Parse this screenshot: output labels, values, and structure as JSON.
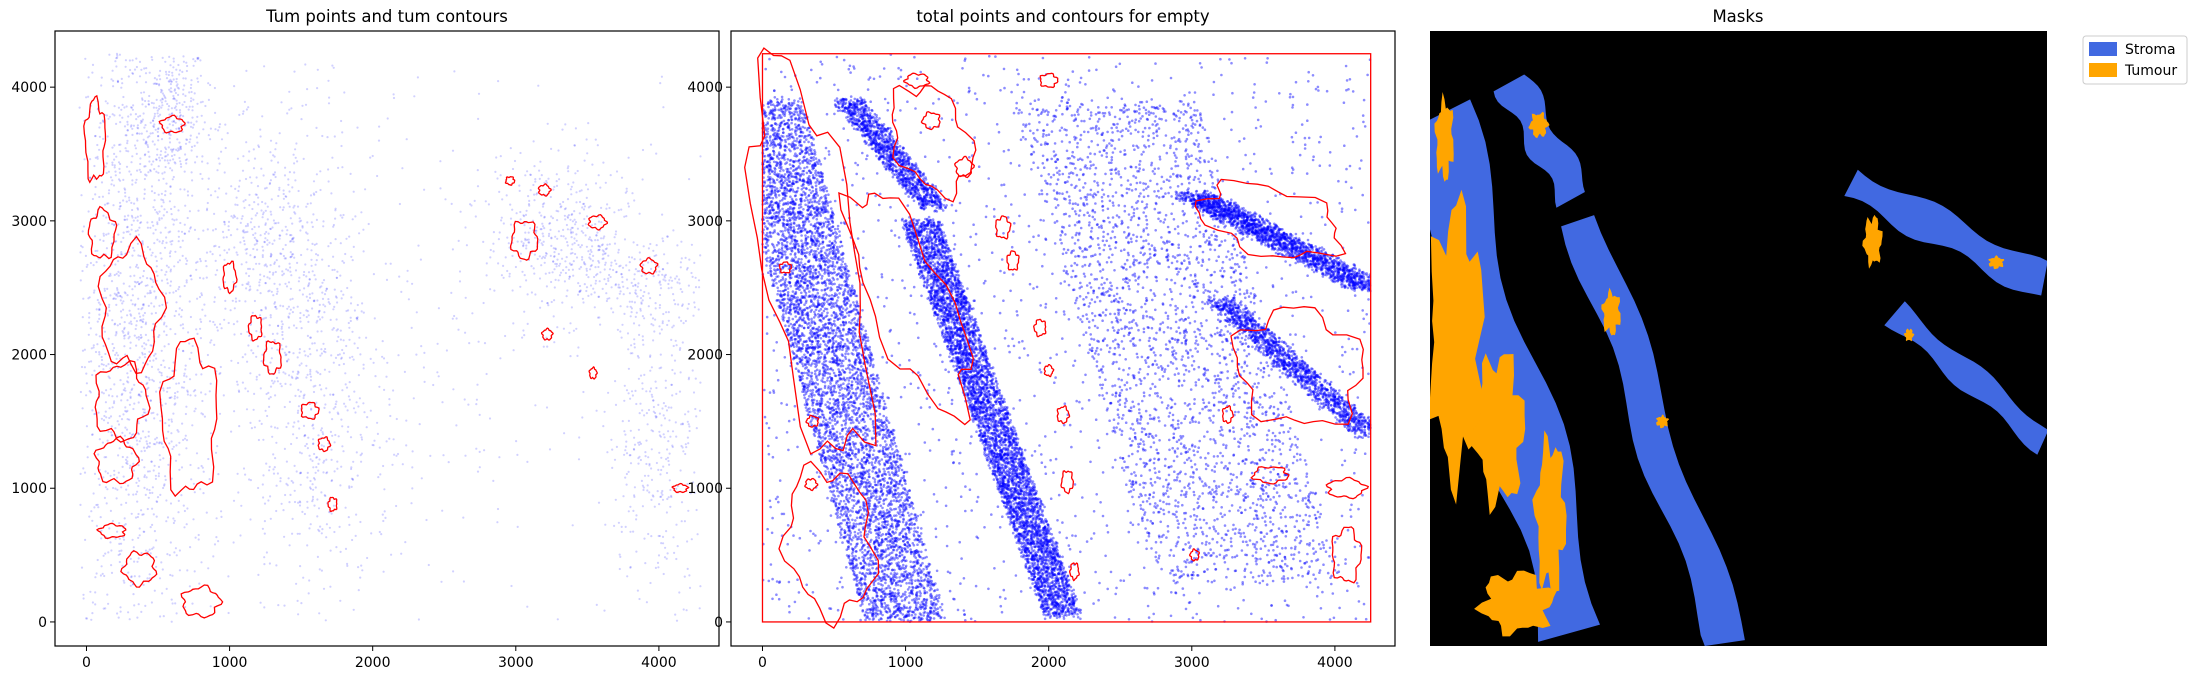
{
  "chart_data": [
    {
      "type": "scatter",
      "title": "Tum points and tum contours",
      "xlim": [
        -220,
        4420
      ],
      "ylim": [
        -180,
        4420
      ],
      "x_ticks": [
        0,
        1000,
        2000,
        3000,
        4000
      ],
      "y_ticks": [
        0,
        1000,
        2000,
        3000,
        4000
      ],
      "point_color": "#0000ff",
      "contour_color": "#ff0000",
      "point_density": "sparse",
      "clusters": [
        {
          "x": 600,
          "y": 3800,
          "sx": 120,
          "sy": 280,
          "n": 260
        },
        {
          "x": 350,
          "y": 2200,
          "sx": 260,
          "sy": 1500,
          "n": 1800
        },
        {
          "x": 1550,
          "y": 1900,
          "sx": 220,
          "sy": 900,
          "n": 700
        },
        {
          "x": 1200,
          "y": 2800,
          "sx": 200,
          "sy": 400,
          "n": 300
        },
        {
          "x": 3300,
          "y": 2900,
          "sx": 250,
          "sy": 300,
          "n": 400
        },
        {
          "x": 3850,
          "y": 2550,
          "sx": 300,
          "sy": 150,
          "n": 250
        },
        {
          "x": 4000,
          "y": 1400,
          "sx": 180,
          "sy": 600,
          "n": 350
        },
        {
          "x": 2100,
          "y": 2000,
          "sx": 1500,
          "sy": 1500,
          "n": 600
        }
      ],
      "contours": [
        {
          "x": 60,
          "y": 3600,
          "rx": 70,
          "ry": 300
        },
        {
          "x": 110,
          "y": 2900,
          "rx": 90,
          "ry": 180
        },
        {
          "x": 310,
          "y": 2350,
          "rx": 210,
          "ry": 450
        },
        {
          "x": 240,
          "y": 1650,
          "rx": 180,
          "ry": 280
        },
        {
          "x": 210,
          "y": 1200,
          "rx": 140,
          "ry": 160
        },
        {
          "x": 720,
          "y": 1520,
          "rx": 190,
          "ry": 560
        },
        {
          "x": 180,
          "y": 680,
          "rx": 90,
          "ry": 50
        },
        {
          "x": 370,
          "y": 400,
          "rx": 110,
          "ry": 120
        },
        {
          "x": 800,
          "y": 150,
          "rx": 130,
          "ry": 110
        },
        {
          "x": 600,
          "y": 3720,
          "rx": 80,
          "ry": 60
        },
        {
          "x": 1000,
          "y": 2580,
          "rx": 45,
          "ry": 110
        },
        {
          "x": 1180,
          "y": 2200,
          "rx": 45,
          "ry": 90
        },
        {
          "x": 1300,
          "y": 1980,
          "rx": 60,
          "ry": 120
        },
        {
          "x": 1560,
          "y": 1580,
          "rx": 60,
          "ry": 60
        },
        {
          "x": 1660,
          "y": 1330,
          "rx": 40,
          "ry": 50
        },
        {
          "x": 1720,
          "y": 880,
          "rx": 30,
          "ry": 50
        },
        {
          "x": 3060,
          "y": 2860,
          "rx": 90,
          "ry": 140
        },
        {
          "x": 3570,
          "y": 2990,
          "rx": 60,
          "ry": 50
        },
        {
          "x": 3930,
          "y": 2660,
          "rx": 55,
          "ry": 55
        },
        {
          "x": 3220,
          "y": 2150,
          "rx": 35,
          "ry": 40
        },
        {
          "x": 3540,
          "y": 1860,
          "rx": 25,
          "ry": 40
        },
        {
          "x": 4150,
          "y": 1000,
          "rx": 50,
          "ry": 30
        },
        {
          "x": 2960,
          "y": 3300,
          "rx": 30,
          "ry": 30
        },
        {
          "x": 3200,
          "y": 3230,
          "rx": 40,
          "ry": 40
        }
      ]
    },
    {
      "type": "scatter",
      "title": "total points and contours for empty",
      "xlim": [
        -220,
        4420
      ],
      "ylim": [
        -180,
        4420
      ],
      "x_ticks": [
        0,
        1000,
        2000,
        3000,
        4000
      ],
      "y_ticks": [
        0,
        1000,
        2000,
        3000,
        4000
      ],
      "point_color": "#0000ff",
      "contour_color": "#ff0000",
      "point_density": "dense",
      "outer_box": {
        "x0": 0,
        "y0": 0,
        "x1": 4250,
        "y1": 4250
      },
      "bands": [
        {
          "x0": 0,
          "y0": 3900,
          "x1": 1000,
          "y1": 0,
          "w": 560,
          "n": 6000
        },
        {
          "x0": 600,
          "y0": 3900,
          "x1": 1200,
          "y1": 3100,
          "w": 200,
          "n": 1200
        },
        {
          "x0": 1100,
          "y0": 3000,
          "x1": 2100,
          "y1": 50,
          "w": 260,
          "n": 5000
        },
        {
          "x0": 3000,
          "y0": 3200,
          "x1": 4250,
          "y1": 2500,
          "w": 260,
          "n": 2000
        },
        {
          "x0": 3200,
          "y0": 2400,
          "x1": 4250,
          "y1": 1400,
          "w": 200,
          "n": 1400
        },
        {
          "x0": 2400,
          "y0": 3900,
          "x1": 3400,
          "y1": 300,
          "w": 1300,
          "n": 2400
        }
      ],
      "contours": [
        {
          "x": 1180,
          "y": 3610,
          "rx": 250,
          "ry": 420,
          "rot": 25
        },
        {
          "x": 1030,
          "y": 2400,
          "rx": 270,
          "ry": 900,
          "rot": 24
        },
        {
          "x": 330,
          "y": 2700,
          "rx": 330,
          "ry": 1500,
          "rot": 10
        },
        {
          "x": 470,
          "y": 600,
          "rx": 300,
          "ry": 550,
          "rot": 8
        },
        {
          "x": 3550,
          "y": 3000,
          "rx": 500,
          "ry": 250,
          "rot": -15
        },
        {
          "x": 3750,
          "y": 1900,
          "rx": 450,
          "ry": 420,
          "rot": -25
        },
        {
          "x": 1410,
          "y": 3400,
          "rx": 60,
          "ry": 70
        },
        {
          "x": 1680,
          "y": 2950,
          "rx": 50,
          "ry": 80
        },
        {
          "x": 1750,
          "y": 2700,
          "rx": 40,
          "ry": 70
        },
        {
          "x": 1940,
          "y": 2200,
          "rx": 40,
          "ry": 60
        },
        {
          "x": 2000,
          "y": 1880,
          "rx": 30,
          "ry": 40
        },
        {
          "x": 2100,
          "y": 1550,
          "rx": 40,
          "ry": 60
        },
        {
          "x": 2130,
          "y": 1050,
          "rx": 40,
          "ry": 80
        },
        {
          "x": 2180,
          "y": 380,
          "rx": 30,
          "ry": 60
        },
        {
          "x": 3020,
          "y": 500,
          "rx": 30,
          "ry": 40
        },
        {
          "x": 3250,
          "y": 1550,
          "rx": 35,
          "ry": 60
        },
        {
          "x": 3550,
          "y": 1100,
          "rx": 120,
          "ry": 60
        },
        {
          "x": 4080,
          "y": 1000,
          "rx": 130,
          "ry": 70
        },
        {
          "x": 4080,
          "y": 500,
          "rx": 100,
          "ry": 200
        },
        {
          "x": 1080,
          "y": 4050,
          "rx": 80,
          "ry": 50
        },
        {
          "x": 1180,
          "y": 3750,
          "rx": 60,
          "ry": 60
        },
        {
          "x": 2000,
          "y": 4050,
          "rx": 60,
          "ry": 50
        },
        {
          "x": 340,
          "y": 1030,
          "rx": 40,
          "ry": 40
        },
        {
          "x": 350,
          "y": 1500,
          "rx": 40,
          "ry": 40
        },
        {
          "x": 160,
          "y": 2650,
          "rx": 40,
          "ry": 40
        }
      ]
    },
    {
      "type": "heatmap",
      "title": "Masks",
      "legend": [
        "Stroma",
        "Tumour"
      ],
      "legend_placement": "outside-top-right",
      "colors": {
        "background": "#000000",
        "stroma": "#4169e1",
        "tumour": "#ffa500"
      },
      "extent": [
        0,
        4250,
        0,
        4250
      ],
      "stroma_regions": [
        {
          "x0": 0,
          "y0": 3700,
          "x1": 1000,
          "y1": 100,
          "w": 620
        },
        {
          "x0": 560,
          "y0": 3900,
          "x1": 1000,
          "y1": 3100,
          "w": 300
        },
        {
          "x0": 1050,
          "y0": 2950,
          "x1": 2050,
          "y1": 0,
          "w": 340
        },
        {
          "x0": 2900,
          "y0": 3200,
          "x1": 4250,
          "y1": 2500,
          "w": 300
        },
        {
          "x0": 3200,
          "y0": 2300,
          "x1": 4250,
          "y1": 1400,
          "w": 220
        }
      ],
      "tumour_regions": [
        {
          "x": 180,
          "y": 2100,
          "rx": 180,
          "ry": 900
        },
        {
          "x": 480,
          "y": 1500,
          "rx": 160,
          "ry": 500
        },
        {
          "x": 830,
          "y": 900,
          "rx": 100,
          "ry": 500
        },
        {
          "x": 600,
          "y": 300,
          "rx": 240,
          "ry": 200
        },
        {
          "x": 100,
          "y": 3500,
          "rx": 60,
          "ry": 260
        },
        {
          "x": 750,
          "y": 3600,
          "rx": 60,
          "ry": 80
        },
        {
          "x": 1250,
          "y": 2300,
          "rx": 60,
          "ry": 140
        },
        {
          "x": 1600,
          "y": 1550,
          "rx": 40,
          "ry": 40
        },
        {
          "x": 3050,
          "y": 2800,
          "rx": 60,
          "ry": 160
        },
        {
          "x": 3300,
          "y": 2150,
          "rx": 30,
          "ry": 40
        },
        {
          "x": 3900,
          "y": 2650,
          "rx": 50,
          "ry": 40
        }
      ]
    }
  ]
}
